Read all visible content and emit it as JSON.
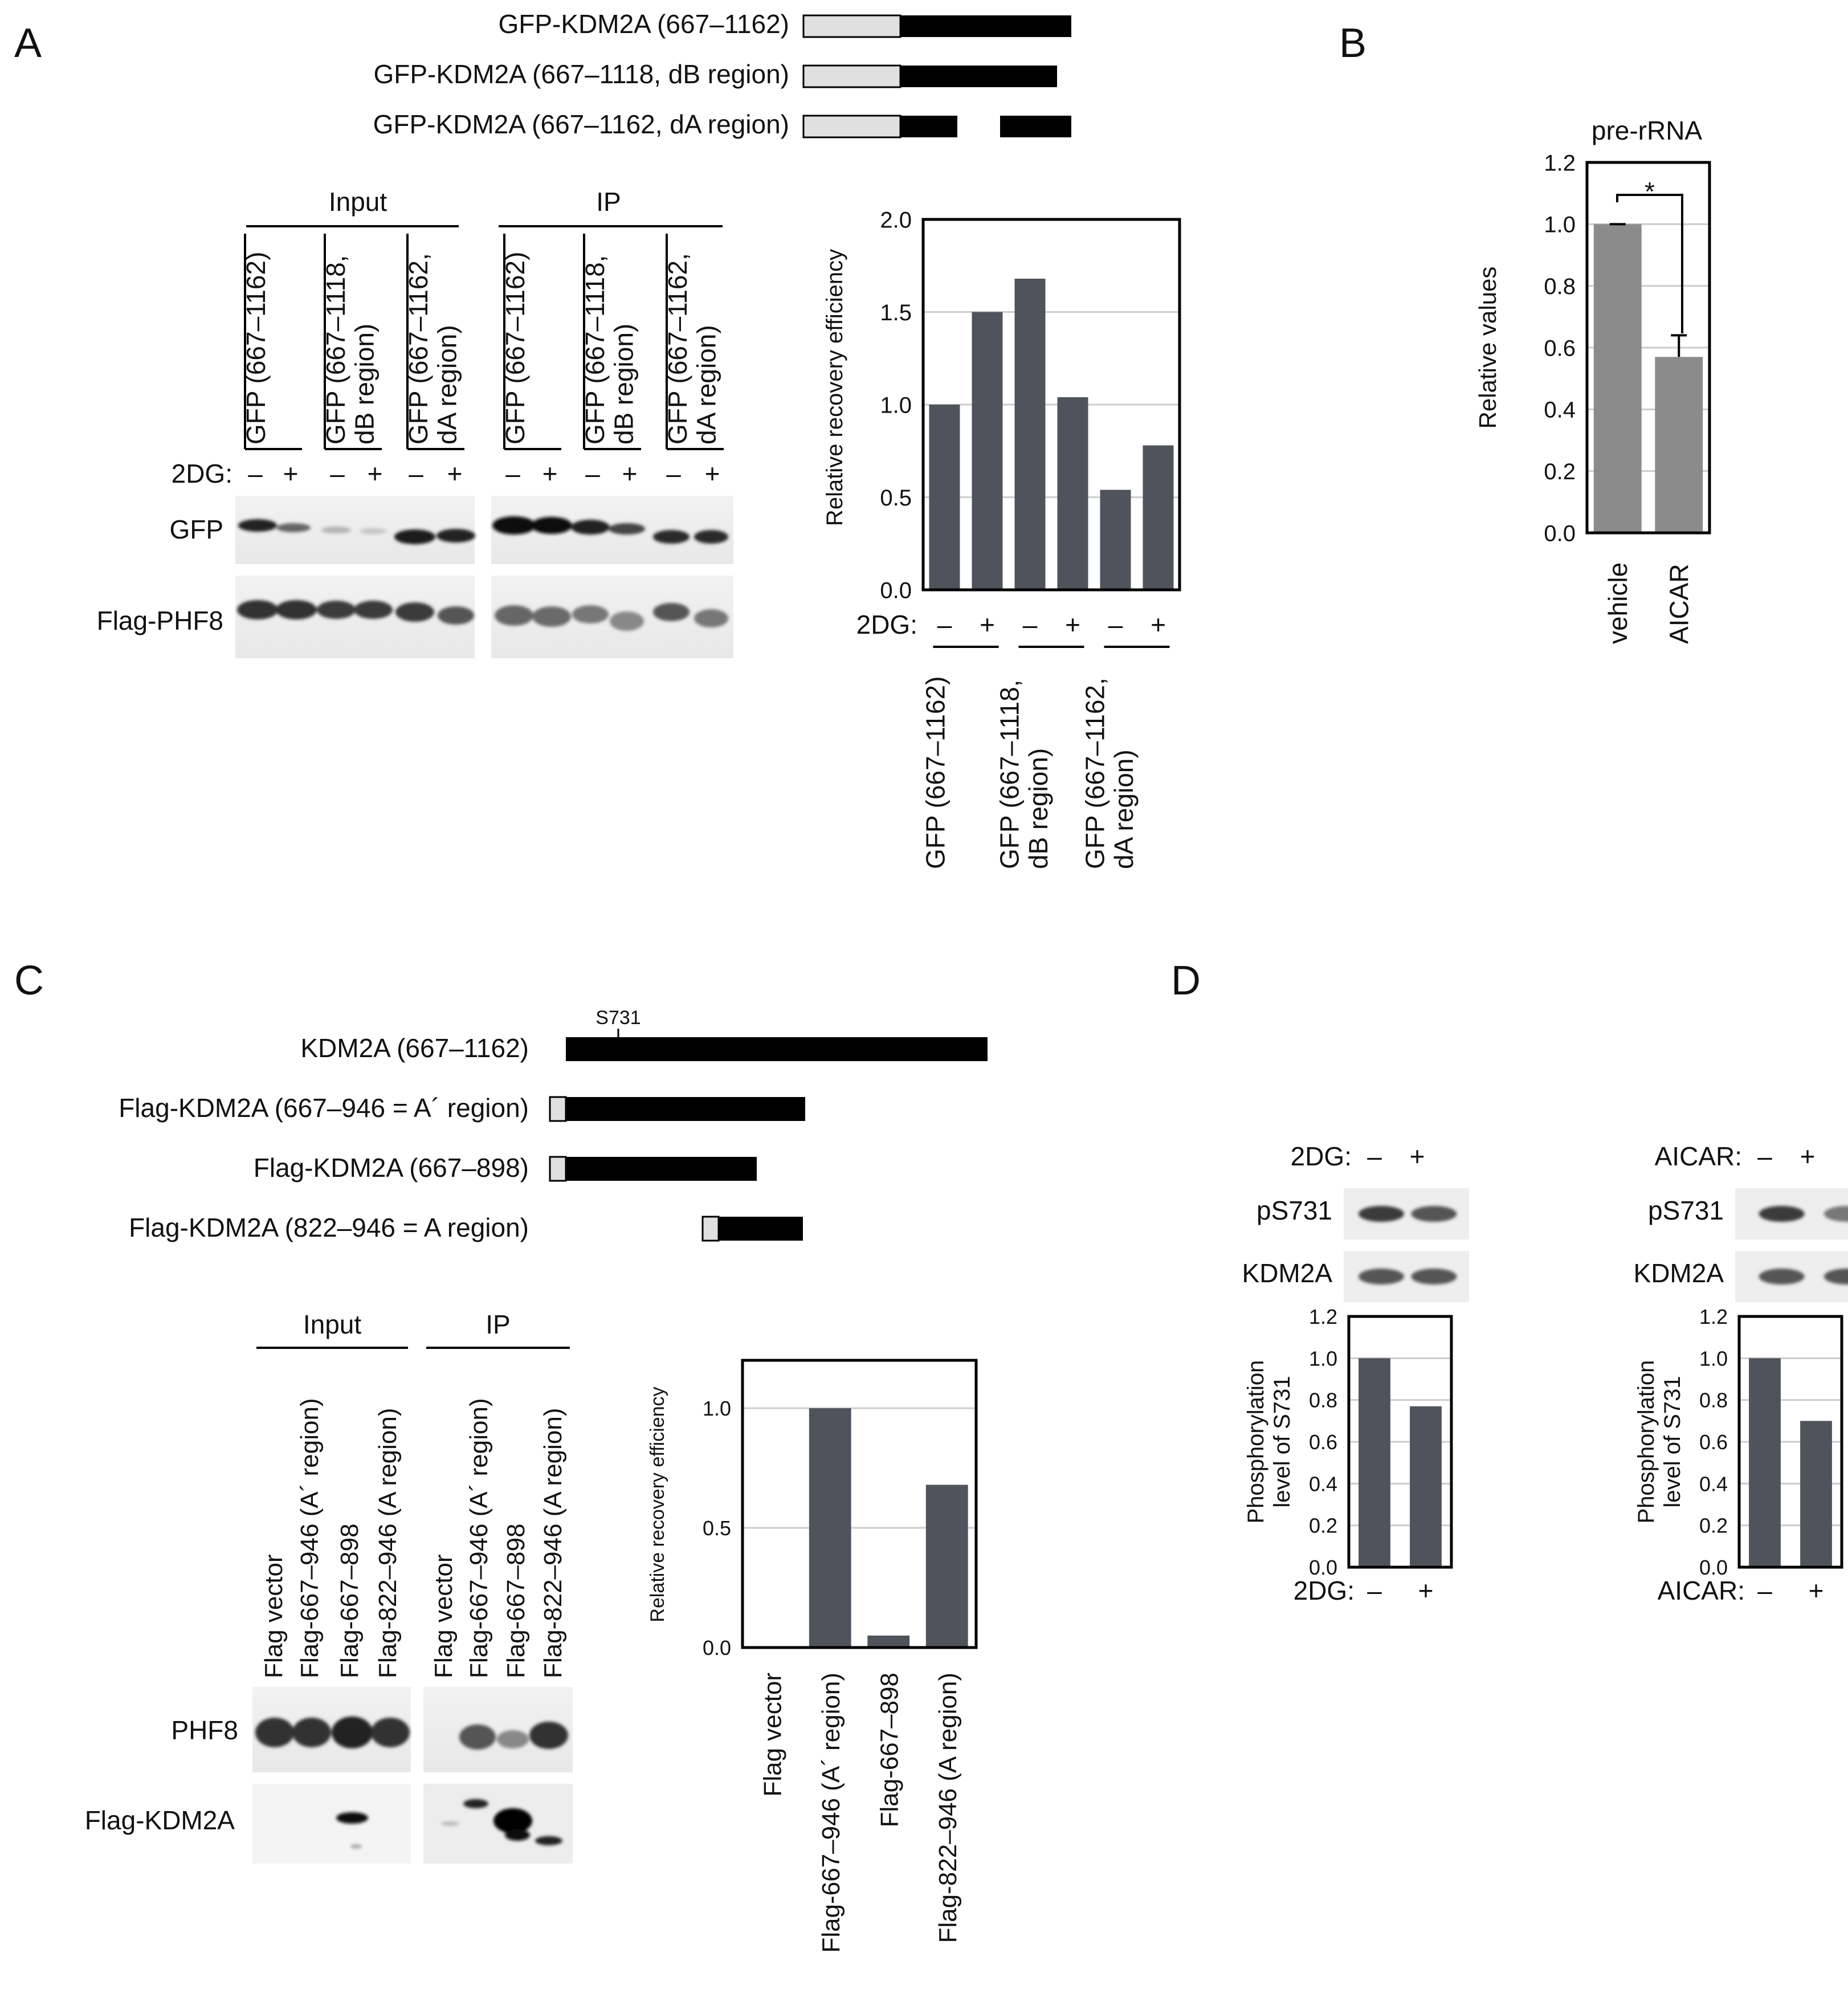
{
  "colors": {
    "bar": "#4f545c",
    "bar_light": "#8b8b8b",
    "grid": "#cccccc",
    "tag": "#e0e0e0",
    "ink": "#000000"
  },
  "panel_letters": [
    "A",
    "B",
    "C",
    "D"
  ],
  "panelA": {
    "constructs": [
      "GFP-KDM2A (667–1162)",
      "GFP-KDM2A (667–1118, dB region)",
      "GFP-KDM2A (667–1162, dA region)"
    ],
    "blot": {
      "group_labels": [
        "Input",
        "IP"
      ],
      "lane_labels": [
        [
          "GFP (667–1162)"
        ],
        [
          "GFP (667–1118,",
          "dB region)"
        ],
        [
          "GFP (667–1162,",
          "dA region)"
        ],
        [
          "GFP (667–1162)"
        ],
        [
          "GFP (667–1118,",
          "dB region)"
        ],
        [
          "GFP (667–1162,",
          "dA region)"
        ]
      ],
      "treatment_label": "2DG:",
      "signs": [
        "–",
        "+",
        "–",
        "+",
        "–",
        "+",
        "–",
        "+",
        "–",
        "+",
        "–",
        "+"
      ],
      "rows": [
        "GFP",
        "Flag-PHF8"
      ]
    },
    "chart_data": {
      "type": "bar",
      "ylabel": "Relative recovery efficiency",
      "ylim": [
        0,
        2.0
      ],
      "yticks": [
        "0.0",
        "0.5",
        "1.0",
        "1.5",
        "2.0"
      ],
      "treatment_label": "2DG:",
      "signs": [
        "–",
        "+",
        "–",
        "+",
        "–",
        "+"
      ],
      "values": [
        1.0,
        1.5,
        1.68,
        1.04,
        0.54,
        0.78
      ],
      "groups": [
        [
          "GFP (667–1162)"
        ],
        [
          "GFP (667–1118,",
          "dB region)"
        ],
        [
          "GFP (667–1162,",
          "dA region)"
        ]
      ]
    }
  },
  "panelB": {
    "chart_data": {
      "type": "bar",
      "title": "pre-rRNA",
      "ylabel": "Relative values",
      "ylim": [
        0,
        1.2
      ],
      "yticks": [
        "0.0",
        "0.2",
        "0.4",
        "0.6",
        "0.8",
        "1.0",
        "1.2"
      ],
      "categories": [
        "vehicle",
        "AICAR"
      ],
      "values": [
        1.0,
        0.57
      ],
      "errors": [
        0.0,
        0.07
      ],
      "significance": "*"
    }
  },
  "panelC": {
    "constructs": [
      "KDM2A (667–1162)",
      "Flag-KDM2A (667–946 = A´ region)",
      "Flag-KDM2A (667–898)",
      "Flag-KDM2A (822–946 = A region)"
    ],
    "site_label": "S731",
    "blot": {
      "group_labels": [
        "Input",
        "IP"
      ],
      "lane_labels": [
        "Flag vector",
        "Flag-667–946 (A´ region)",
        "Flag-667–898",
        "Flag-822–946 (A region)",
        "Flag vector",
        "Flag-667–946 (A´ region)",
        "Flag-667–898",
        "Flag-822–946 (A region)"
      ],
      "rows": [
        "PHF8",
        "Flag-KDM2A"
      ]
    },
    "chart_data": {
      "type": "bar",
      "ylabel": "Relative recovery efficiency",
      "ylim": [
        0,
        1.2
      ],
      "yticks": [
        "0.0",
        "0.5",
        "1.0"
      ],
      "categories": [
        "Flag vector",
        "Flag-667–946 (A´ region)",
        "Flag-667–898",
        "Flag-822–946 (A region)"
      ],
      "values": [
        0.0,
        1.0,
        0.05,
        0.68
      ]
    }
  },
  "panelD": {
    "sub": [
      {
        "treatment_label": "2DG:",
        "signs": [
          "–",
          "+"
        ],
        "rows": [
          "pS731",
          "KDM2A"
        ],
        "chart_data": {
          "type": "bar",
          "ylabel": [
            "Phosphorylation",
            "level of S731"
          ],
          "ylim": [
            0,
            1.2
          ],
          "yticks": [
            "0.0",
            "0.2",
            "0.4",
            "0.6",
            "0.8",
            "1.0",
            "1.2"
          ],
          "values": [
            1.0,
            0.77
          ]
        }
      },
      {
        "treatment_label": "AICAR:",
        "signs": [
          "–",
          "+"
        ],
        "rows": [
          "pS731",
          "KDM2A"
        ],
        "chart_data": {
          "type": "bar",
          "ylabel": [
            "Phosphorylation",
            "level of S731"
          ],
          "ylim": [
            0,
            1.2
          ],
          "yticks": [
            "0.0",
            "0.2",
            "0.4",
            "0.6",
            "0.8",
            "1.0",
            "1.2"
          ],
          "values": [
            1.0,
            0.7
          ]
        }
      }
    ]
  }
}
